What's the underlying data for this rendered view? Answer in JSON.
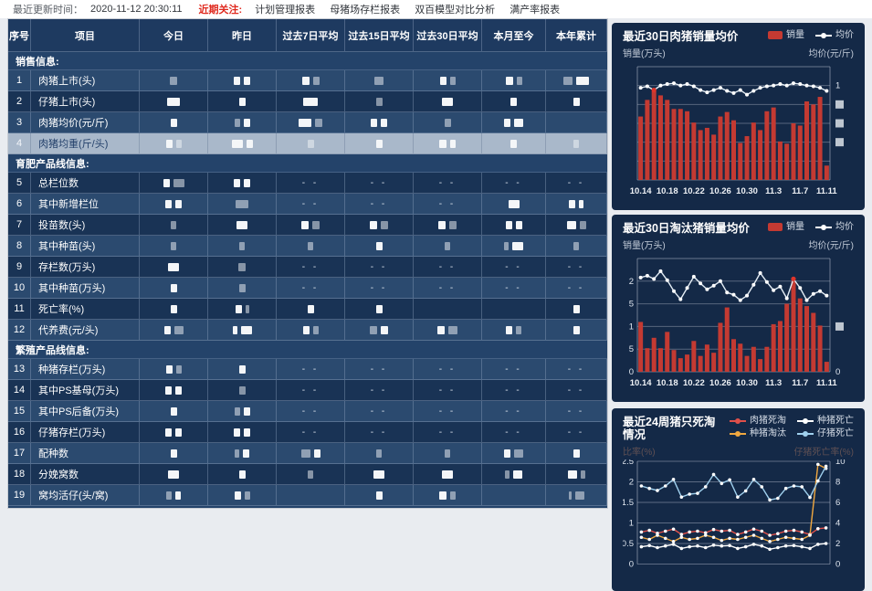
{
  "colors": {
    "accent_red": "#e02a1f",
    "bar_red": "#c43a32",
    "line_white": "#e4edf5",
    "card_bg": "#142947",
    "header_bg": "#1e3a60",
    "row_light": "#2b4a6f",
    "row_dark": "#193355",
    "row_selected": "#a9b8ca",
    "orange": "#f0a840",
    "light_blue": "#9fd0ee",
    "white": "#ffffff"
  },
  "topbar": {
    "update_label": "最近更新时间：",
    "update_time": "2020-11-12 20:30:11",
    "focus_label": "近期关注:",
    "links": [
      "计划管理报表",
      "母猪场存栏报表",
      "双百模型对比分析",
      "满产率报表"
    ]
  },
  "table": {
    "columns": [
      "序号",
      "项目",
      "今日",
      "昨日",
      "过去7日平均",
      "过去15日平均",
      "过去30日平均",
      "本月至今",
      "本年累计"
    ],
    "selected_row_sn": "4",
    "sections": [
      {
        "title": "销售信息:",
        "rows": [
          {
            "sn": "1",
            "label": "肉猪上市(头)",
            "cells": [
              [
                "8f"
              ],
              [
                "7",
                "7"
              ],
              [
                "8",
                "7f"
              ],
              [
                "10f"
              ],
              [
                "7",
                "6f"
              ],
              [
                "8",
                "6f"
              ],
              [
                "10f",
                "14"
              ]
            ]
          },
          {
            "sn": "2",
            "label": "仔猪上市(头)",
            "cells": [
              [
                "14"
              ],
              [
                "7"
              ],
              [
                "16"
              ],
              [
                "7f"
              ],
              [
                "12"
              ],
              [
                "7"
              ],
              [
                "7"
              ]
            ]
          },
          {
            "sn": "3",
            "label": "肉猪均价(元/斤)",
            "cells": [
              [
                "7"
              ],
              [
                "6f",
                "7"
              ],
              [
                "14",
                "8f"
              ],
              [
                "7",
                "7"
              ],
              [
                "7f"
              ],
              [
                "7",
                "10"
              ],
              []
            ]
          },
          {
            "sn": "4",
            "label": "肉猪均重(斤/头)",
            "cells": [
              [
                "7",
                "6f"
              ],
              [
                "12",
                "7"
              ],
              [
                "7f"
              ],
              [
                "7"
              ],
              [
                "8",
                "6"
              ],
              [
                "7"
              ],
              [
                "6f"
              ]
            ]
          }
        ]
      },
      {
        "title": "育肥产品线信息:",
        "rows": [
          {
            "sn": "5",
            "label": "总栏位数",
            "cells": [
              [
                "7",
                "12f"
              ],
              [
                "7",
                "7"
              ],
              "--",
              "--",
              "--",
              "--",
              "--"
            ]
          },
          {
            "sn": "6",
            "label": "其中新增栏位",
            "cells": [
              [
                "7",
                "7"
              ],
              [
                "14f"
              ],
              "--",
              "--",
              "--",
              [
                "12"
              ],
              [
                "7",
                "5"
              ]
            ]
          },
          {
            "sn": "7",
            "label": "投苗数(头)",
            "cells": [
              [
                "6f"
              ],
              [
                "12"
              ],
              [
                "8",
                "8f"
              ],
              [
                "8",
                "8f"
              ],
              [
                "8",
                "8f"
              ],
              [
                "7",
                "7"
              ],
              [
                "10",
                "7f"
              ]
            ]
          },
          {
            "sn": "8",
            "label": "其中种苗(头)",
            "cells": [
              [
                "6f"
              ],
              [
                "6f"
              ],
              [
                "6f"
              ],
              [
                "7"
              ],
              [
                "6f"
              ],
              [
                "5f",
                "12"
              ],
              [
                "6f"
              ]
            ]
          },
          {
            "sn": "9",
            "label": "存栏数(万头)",
            "cells": [
              [
                "12"
              ],
              [
                "8f"
              ],
              "--",
              "--",
              "--",
              "--",
              "--"
            ]
          },
          {
            "sn": "10",
            "label": "其中种苗(万头)",
            "cells": [
              [
                "7"
              ],
              [
                "7f"
              ],
              "--",
              "--",
              "--",
              "--",
              "--"
            ]
          },
          {
            "sn": "11",
            "label": "死亡率(%)",
            "cells": [
              [
                "7"
              ],
              [
                "7",
                "4f"
              ],
              [
                "7"
              ],
              [
                "7"
              ],
              [],
              [],
              [
                "7"
              ]
            ]
          },
          {
            "sn": "12",
            "label": "代养费(元/头)",
            "cells": [
              [
                "7",
                "10f"
              ],
              [
                "5",
                "12"
              ],
              [
                "7",
                "6f"
              ],
              [
                "8f",
                "8"
              ],
              [
                "8",
                "10f"
              ],
              [
                "7",
                "6f"
              ],
              [
                "7"
              ]
            ]
          }
        ]
      },
      {
        "title": "繁殖产品线信息:",
        "rows": [
          {
            "sn": "13",
            "label": "种猪存栏(万头)",
            "cells": [
              [
                "7",
                "6f"
              ],
              [
                "7"
              ],
              "--",
              "--",
              "--",
              "--",
              "--"
            ]
          },
          {
            "sn": "14",
            "label": "其中PS基母(万头)",
            "cells": [
              [
                "7",
                "7"
              ],
              [
                "7f"
              ],
              "--",
              "--",
              "--",
              "--",
              "--"
            ]
          },
          {
            "sn": "15",
            "label": "其中PS后备(万头)",
            "cells": [
              [
                "7"
              ],
              [
                "6f",
                "7"
              ],
              "--",
              "--",
              "--",
              "--",
              "--"
            ]
          },
          {
            "sn": "16",
            "label": "仔猪存栏(万头)",
            "cells": [
              [
                "7",
                "7"
              ],
              [
                "7",
                "7"
              ],
              "--",
              "--",
              "--",
              "--",
              "--"
            ]
          },
          {
            "sn": "17",
            "label": "配种数",
            "cells": [
              [
                "7"
              ],
              [
                "5f",
                "7"
              ],
              [
                "10f",
                "7"
              ],
              [
                "6f"
              ],
              [
                "6f"
              ],
              [
                "7",
                "10f"
              ],
              [
                "7"
              ]
            ]
          },
          {
            "sn": "18",
            "label": "分娩窝数",
            "cells": [
              [
                "12"
              ],
              [
                "7"
              ],
              [
                "6f"
              ],
              [
                "12"
              ],
              [
                "12"
              ],
              [
                "5f",
                "10"
              ],
              [
                "10",
                "5f"
              ]
            ]
          },
          {
            "sn": "19",
            "label": "窝均活仔(头/窝)",
            "cells": [
              [
                "6f",
                "6"
              ],
              [
                "7",
                "6f"
              ],
              [],
              [
                "7"
              ],
              [
                "8",
                "6f"
              ],
              [],
              [
                "3f",
                "10f"
              ]
            ]
          }
        ]
      }
    ]
  },
  "chart_data": [
    {
      "type": "bar",
      "title": "最近30日肉猪销量均价",
      "legend": [
        {
          "label": "销量",
          "shape": "bar",
          "color": "#c43a32"
        },
        {
          "label": "均价",
          "shape": "line",
          "color": "#ffffff"
        }
      ],
      "ylabel_left": "销量(万头)",
      "ylabel_right": "均价(元/斤)",
      "x": [
        "10.14",
        "10.15",
        "10.16",
        "10.17",
        "10.18",
        "10.19",
        "10.20",
        "10.21",
        "10.22",
        "10.23",
        "10.24",
        "10.25",
        "10.26",
        "10.27",
        "10.28",
        "10.29",
        "10.30",
        "10.31",
        "11.1",
        "11.2",
        "11.3",
        "11.4",
        "11.5",
        "11.6",
        "11.7",
        "11.8",
        "11.9",
        "11.10",
        "11.11"
      ],
      "xtick_idx": [
        0,
        4,
        8,
        12,
        16,
        20,
        24,
        28
      ],
      "ylim": [
        0,
        1.5
      ],
      "grid_intervals": 6,
      "left_ticks_top_down": [
        "",
        "",
        "",
        "",
        "",
        "",
        ""
      ],
      "right_ticks_top_down": [
        "",
        "1",
        "#",
        "#",
        "#",
        "",
        ""
      ],
      "bars": [
        0.84,
        1.06,
        1.18,
        1.12,
        1.06,
        0.94,
        0.94,
        0.91,
        0.76,
        0.66,
        0.69,
        0.6,
        0.84,
        0.9,
        0.79,
        0.49,
        0.58,
        0.76,
        0.66,
        0.91,
        0.96,
        0.51,
        0.48,
        0.75,
        0.72,
        1.04,
        1.0,
        1.1,
        0.19
      ],
      "line": [
        1.22,
        1.24,
        1.19,
        1.25,
        1.27,
        1.28,
        1.25,
        1.27,
        1.24,
        1.19,
        1.16,
        1.19,
        1.22,
        1.18,
        1.15,
        1.19,
        1.13,
        1.18,
        1.22,
        1.24,
        1.25,
        1.27,
        1.25,
        1.28,
        1.27,
        1.25,
        1.24,
        1.22,
        1.18
      ],
      "red_marker_idx": 2
    },
    {
      "type": "bar",
      "title": "最近30日淘汰猪销量均价",
      "legend": [
        {
          "label": "销量",
          "shape": "bar",
          "color": "#c43a32"
        },
        {
          "label": "均价",
          "shape": "line",
          "color": "#ffffff"
        }
      ],
      "ylabel_left": "销量(万头)",
      "ylabel_right": "均价(元/斤)",
      "x": [
        "10.14",
        "10.15",
        "10.16",
        "10.17",
        "10.18",
        "10.19",
        "10.20",
        "10.21",
        "10.22",
        "10.23",
        "10.24",
        "10.25",
        "10.26",
        "10.27",
        "10.28",
        "10.29",
        "10.30",
        "10.31",
        "11.1",
        "11.2",
        "11.3",
        "11.4",
        "11.5",
        "11.6",
        "11.7",
        "11.8",
        "11.9",
        "11.10",
        "11.11"
      ],
      "xtick_idx": [
        0,
        4,
        8,
        12,
        16,
        20,
        24,
        28
      ],
      "ylim": [
        0,
        2.5
      ],
      "grid_intervals": 5,
      "left_ticks_top_down": [
        "",
        "2",
        "5",
        "1",
        "5",
        "0"
      ],
      "right_ticks_top_down": [
        "",
        "",
        "",
        "#",
        "",
        "0"
      ],
      "bars": [
        1.1,
        0.52,
        0.75,
        0.52,
        0.88,
        0.48,
        0.3,
        0.38,
        0.68,
        0.35,
        0.6,
        0.42,
        1.08,
        1.42,
        0.72,
        0.62,
        0.35,
        0.55,
        0.28,
        0.55,
        1.05,
        1.12,
        1.5,
        2.0,
        1.62,
        1.45,
        1.3,
        1.02,
        0.22
      ],
      "line": [
        2.08,
        2.12,
        2.05,
        2.22,
        2.02,
        1.78,
        1.6,
        1.85,
        2.1,
        1.95,
        1.82,
        1.9,
        2.0,
        1.75,
        1.7,
        1.58,
        1.68,
        1.92,
        2.18,
        1.98,
        1.8,
        1.88,
        1.62,
        2.05,
        1.85,
        1.58,
        1.72,
        1.78,
        1.68
      ],
      "red_marker_idx": 23
    },
    {
      "type": "line",
      "title": "最近24周猪只死淘情况",
      "legend": [
        {
          "label": "肉猪死淘",
          "shape": "line",
          "color": "#e0504a"
        },
        {
          "label": "种猪死亡",
          "shape": "line",
          "color": "#ffffff"
        },
        {
          "label": "种猪淘汰",
          "shape": "line",
          "color": "#f0a840"
        },
        {
          "label": "仔猪死亡",
          "shape": "line",
          "color": "#9fd0ee"
        }
      ],
      "ylabel_left": "比率(%)",
      "ylabel_right": "仔猪死亡率(%)",
      "ylim_left": [
        0,
        2.5
      ],
      "ylim_right": [
        0,
        10
      ],
      "grid_intervals": 5,
      "left_ticks_top_down": [
        "2.5",
        "2",
        "1.5",
        "1",
        "0.5",
        "0"
      ],
      "right_ticks_top_down": [
        "10",
        "8",
        "6",
        "4",
        "2",
        "0"
      ],
      "series": [
        {
          "name": "肉猪死淘",
          "axis": "left",
          "color": "#e0504a",
          "values": [
            0.78,
            0.82,
            0.75,
            0.8,
            0.85,
            0.72,
            0.78,
            0.8,
            0.76,
            0.84,
            0.8,
            0.82,
            0.72,
            0.78,
            0.85,
            0.8,
            0.7,
            0.74,
            0.8,
            0.82,
            0.78,
            0.72,
            0.86,
            0.88
          ]
        },
        {
          "name": "种猪死亡",
          "axis": "left",
          "color": "#ffffff",
          "values": [
            0.42,
            0.45,
            0.4,
            0.44,
            0.48,
            0.38,
            0.42,
            0.44,
            0.4,
            0.46,
            0.44,
            0.45,
            0.38,
            0.42,
            0.48,
            0.44,
            0.36,
            0.4,
            0.44,
            0.45,
            0.42,
            0.38,
            0.48,
            0.5
          ]
        },
        {
          "name": "种猪淘汰",
          "axis": "right",
          "color": "#f0a840",
          "values": [
            2.6,
            2.4,
            2.8,
            2.5,
            2.2,
            2.6,
            2.4,
            2.5,
            2.8,
            2.6,
            2.3,
            2.5,
            2.4,
            2.6,
            2.8,
            2.5,
            2.2,
            2.4,
            2.6,
            2.5,
            2.4,
            2.8,
            9.7,
            9.3
          ]
        },
        {
          "name": "仔猪死亡",
          "axis": "left",
          "color": "#9fd0ee",
          "values": [
            1.9,
            1.84,
            1.79,
            1.9,
            2.06,
            1.63,
            1.7,
            1.72,
            1.88,
            2.18,
            1.96,
            2.05,
            1.63,
            1.78,
            2.06,
            1.88,
            1.56,
            1.6,
            1.84,
            1.9,
            1.88,
            1.62,
            2.02,
            2.38
          ]
        }
      ]
    }
  ]
}
